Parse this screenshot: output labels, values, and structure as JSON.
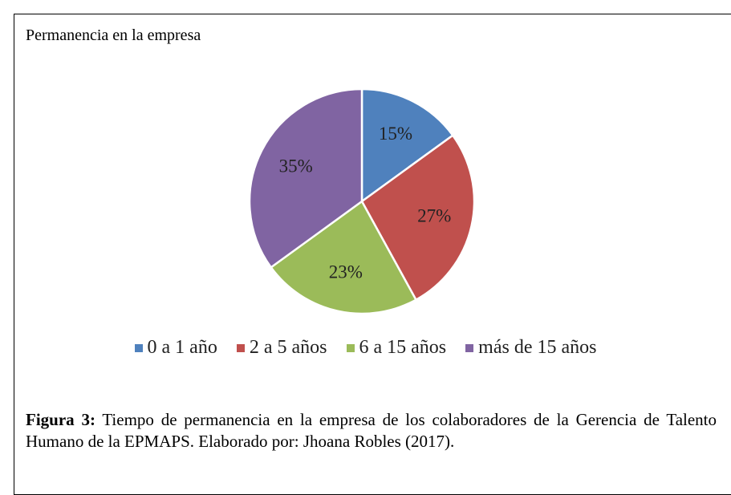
{
  "chart_data": {
    "type": "pie",
    "title": "Permanencia en la empresa",
    "categories": [
      "0 a 1 año",
      "2 a 5 años",
      "6 a 15 años",
      "más de 15 años"
    ],
    "values": [
      15,
      27,
      23,
      35
    ],
    "value_labels": [
      "15%",
      "27%",
      "23%",
      "35%"
    ],
    "colors": [
      "#4f81bd",
      "#c0504d",
      "#9bbb59",
      "#8064a2"
    ],
    "legend": "bottom"
  },
  "caption": {
    "label": "Figura 3:",
    "text": "Tiempo de permanencia en la empresa de los colaboradores de la Gerencia de Talento Humano de la EPMAPS. Elaborado por: Jhoana Robles (2017)."
  }
}
